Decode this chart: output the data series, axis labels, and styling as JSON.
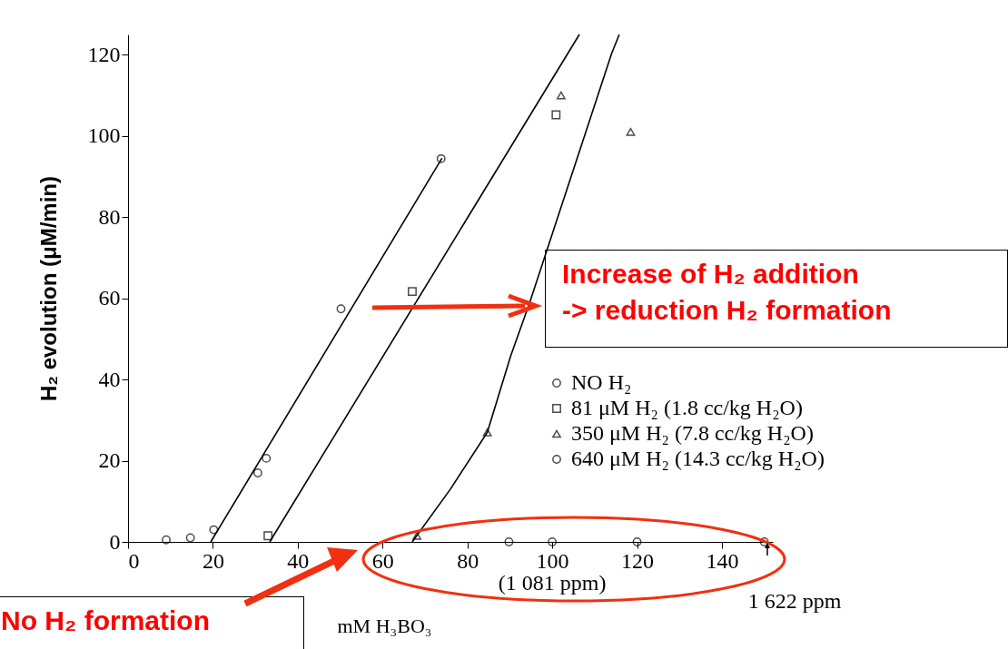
{
  "chart_data": {
    "type": "scatter",
    "xlabel": "mM H₃BO₃",
    "ylabel": "H₂ evolution (μM/min)",
    "xlim": [
      0,
      152
    ],
    "xticks": [
      0,
      20,
      40,
      60,
      80,
      100,
      120,
      140
    ],
    "ylim": [
      0,
      125
    ],
    "yticks": [
      0,
      20,
      40,
      60,
      80,
      100,
      120
    ],
    "grid": false,
    "legend": "bottom right",
    "series": [
      {
        "name": "NO H₂",
        "color": "#000000",
        "marker": "circle",
        "x": [
          9,
          14.7,
          20.2,
          30.6,
          32.6,
          50.2,
          73.8
        ],
        "values": [
          0.5,
          1,
          3,
          17,
          20.6,
          57.4,
          94.4
        ]
      },
      {
        "name": "81 μM H₂ (1.8 cc/kg H₂O)",
        "color": "#000000",
        "marker": "square",
        "x": [
          33,
          67,
          100.9
        ],
        "values": [
          1.5,
          61.7,
          105.2
        ]
      },
      {
        "name": "350 μM H₂ (7.8 cc/kg H₂O)",
        "color": "#000000",
        "marker": "triangle",
        "x": [
          68.1,
          84.7,
          102.1,
          118.5
        ],
        "values": [
          1.5,
          27,
          110,
          101
        ]
      },
      {
        "name": "640 μM H₂ (14.3 cc/kg H₂O)",
        "color": "#000000",
        "marker": "circle",
        "x": [
          89.8,
          100,
          120,
          150
        ],
        "values": [
          0,
          0,
          0,
          0
        ]
      },
      {
        "type": "line",
        "color": "#000000",
        "marker": "none",
        "line_style": "solid",
        "x": [
          19.5,
          74
        ],
        "values": [
          0,
          94.5
        ]
      },
      {
        "type": "line",
        "color": "#000000",
        "marker": "none",
        "line_style": "solid",
        "x": [
          33.4,
          106.4
        ],
        "values": [
          0,
          125
        ]
      },
      {
        "type": "line",
        "color": "#000000",
        "marker": "none",
        "line_style": "solid",
        "x": [
          67,
          76,
          84.7,
          90.2,
          94.7,
          114,
          115.8
        ],
        "values": [
          0,
          13,
          27,
          45.8,
          59,
          120.3,
          125
        ]
      }
    ],
    "annotations": [
      "Increase of H₂ addition\n-> reduction H₂ formation",
      "No H₂ formation",
      {
        "text": "(1 081 ppm)",
        "x": 100,
        "y": 0
      },
      {
        "text": "1 622 ppm",
        "x": 150,
        "y": 0
      }
    ]
  }
}
